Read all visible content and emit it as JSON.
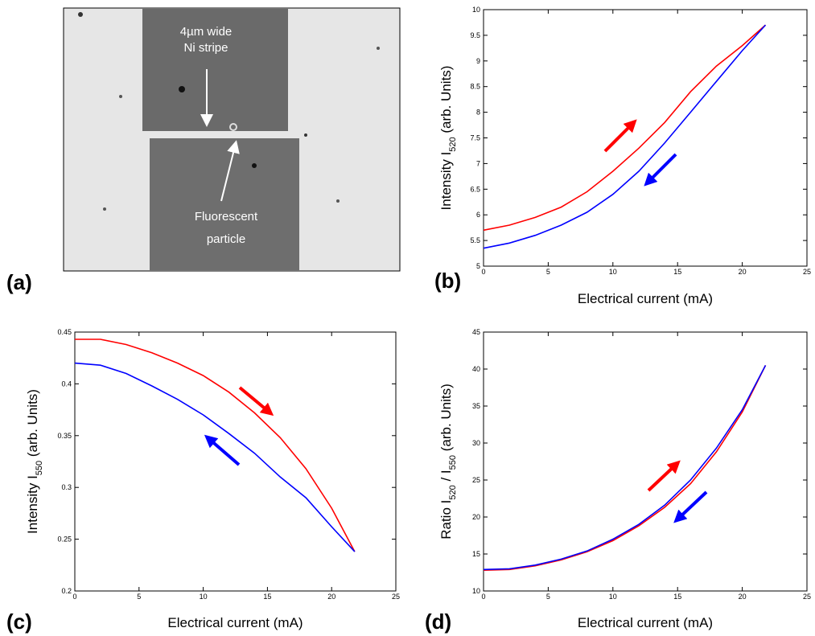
{
  "image": {
    "panel_label": "(a)",
    "labels": [
      "4µm wide",
      "Ni stripe",
      "Fluorescent",
      "particle"
    ]
  },
  "chart_data": [
    {
      "type": "line",
      "panel_label": "(b)",
      "xlabel": "Electrical current (mA)",
      "ylabel": [
        "Intensity I",
        "520",
        " (arb. Units)"
      ],
      "xlim": [
        0,
        25
      ],
      "xticks": [
        0,
        5,
        10,
        15,
        20,
        25
      ],
      "ylim": [
        5,
        10
      ],
      "yticks": [
        5,
        5.5,
        6,
        6.5,
        7,
        7.5,
        8,
        8.5,
        9,
        9.5,
        10
      ],
      "x": [
        0,
        2,
        4,
        6,
        8,
        10,
        12,
        14,
        16,
        18,
        20,
        21.8
      ],
      "series": [
        {
          "color": "#ff0000",
          "values": [
            5.7,
            5.8,
            5.95,
            6.15,
            6.45,
            6.85,
            7.3,
            7.8,
            8.4,
            8.9,
            9.3,
            9.7
          ]
        },
        {
          "color": "#0000ff",
          "values": [
            5.35,
            5.45,
            5.6,
            5.8,
            6.05,
            6.4,
            6.85,
            7.4,
            8.0,
            8.6,
            9.2,
            9.7
          ]
        }
      ]
    },
    {
      "type": "line",
      "panel_label": "(c)",
      "xlabel": "Electrical current (mA)",
      "ylabel": [
        "Intensity I",
        "550",
        " (arb. Units)"
      ],
      "xlim": [
        0,
        25
      ],
      "xticks": [
        0,
        5,
        10,
        15,
        20,
        25
      ],
      "ylim": [
        0.2,
        0.45
      ],
      "yticks": [
        0.2,
        0.25,
        0.3,
        0.35,
        0.4,
        0.45
      ],
      "x": [
        0,
        2,
        4,
        6,
        8,
        10,
        12,
        14,
        16,
        18,
        20,
        21.8
      ],
      "series": [
        {
          "color": "#ff0000",
          "values": [
            0.443,
            0.443,
            0.438,
            0.43,
            0.42,
            0.408,
            0.392,
            0.372,
            0.348,
            0.318,
            0.28,
            0.238
          ]
        },
        {
          "color": "#0000ff",
          "values": [
            0.42,
            0.418,
            0.41,
            0.398,
            0.385,
            0.37,
            0.352,
            0.333,
            0.31,
            0.29,
            0.262,
            0.238
          ]
        }
      ]
    },
    {
      "type": "line",
      "panel_label": "(d)",
      "xlabel": "Electrical current (mA)",
      "ylabel": [
        "Ratio I",
        "520",
        " / I",
        "550",
        " (arb. Units)"
      ],
      "xlim": [
        0,
        25
      ],
      "xticks": [
        0,
        5,
        10,
        15,
        20,
        25
      ],
      "ylim": [
        10,
        45
      ],
      "yticks": [
        10,
        15,
        20,
        25,
        30,
        35,
        40,
        45
      ],
      "x": [
        0,
        2,
        4,
        6,
        8,
        10,
        12,
        14,
        16,
        18,
        20,
        21.8
      ],
      "series": [
        {
          "color": "#ff0000",
          "values": [
            12.8,
            12.9,
            13.4,
            14.2,
            15.3,
            16.8,
            18.8,
            21.3,
            24.5,
            28.8,
            34.2,
            40.5
          ]
        },
        {
          "color": "#0000ff",
          "values": [
            12.9,
            13.0,
            13.5,
            14.3,
            15.4,
            17.0,
            19.0,
            21.6,
            25.0,
            29.3,
            34.5,
            40.5
          ]
        }
      ]
    }
  ]
}
